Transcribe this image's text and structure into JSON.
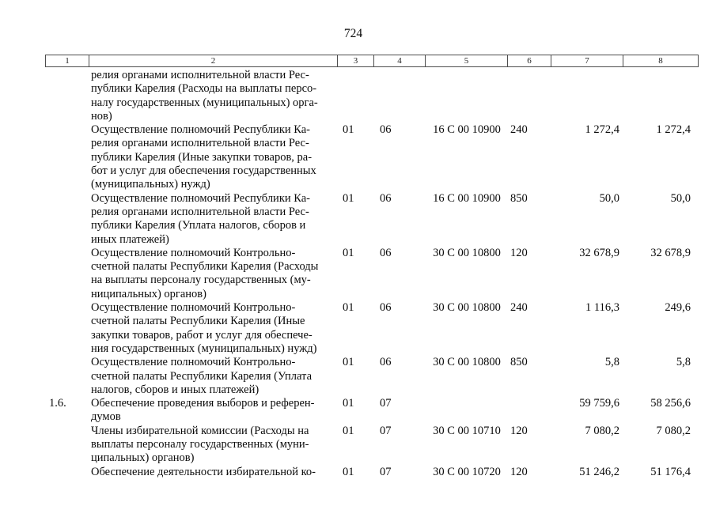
{
  "page": {
    "number": "724"
  },
  "table": {
    "header_columns": [
      "1",
      "2",
      "3",
      "4",
      "5",
      "6",
      "7",
      "8"
    ],
    "rows": [
      {
        "num": "",
        "name": "релия органами исполнительной власти Рес-\nпублики Карелия (Расходы на выплаты персо-\nналу государственных (муниципальных) орга-\nнов)",
        "rz": "",
        "pr": "",
        "csr": "",
        "vr": "",
        "sum1": "",
        "sum2": ""
      },
      {
        "num": "",
        "name": "Осуществление полномочий Республики Ка-\nрелия органами исполнительной власти Рес-\nпублики Карелия (Иные закупки товаров, ра-\nбот и услуг для обеспечения государственных\n(муниципальных) нужд)",
        "rz": "01",
        "pr": "06",
        "csr": "16 С 00 10900",
        "vr": "240",
        "sum1": "1 272,4",
        "sum2": "1 272,4"
      },
      {
        "num": "",
        "name": "Осуществление полномочий Республики Ка-\nрелия органами исполнительной власти Рес-\nпублики Карелия (Уплата налогов, сборов и\nиных платежей)",
        "rz": "01",
        "pr": "06",
        "csr": "16 С 00 10900",
        "vr": "850",
        "sum1": "50,0",
        "sum2": "50,0"
      },
      {
        "num": "",
        "name": "Осуществление полномочий Контрольно-\nсчетной палаты Республики Карелия (Расходы\nна выплаты персоналу государственных (му-\nниципальных) органов)",
        "rz": "01",
        "pr": "06",
        "csr": "30 С 00 10800",
        "vr": "120",
        "sum1": "32 678,9",
        "sum2": "32 678,9"
      },
      {
        "num": "",
        "name": "Осуществление полномочий Контрольно-\nсчетной палаты Республики Карелия (Иные\nзакупки товаров, работ и услуг для обеспече-\nния государственных (муниципальных) нужд)",
        "rz": "01",
        "pr": "06",
        "csr": "30 С 00 10800",
        "vr": "240",
        "sum1": "1 116,3",
        "sum2": "249,6"
      },
      {
        "num": "",
        "name": "Осуществление полномочий Контрольно-\nсчетной палаты Республики Карелия (Уплата\nналогов, сборов и иных платежей)",
        "rz": "01",
        "pr": "06",
        "csr": "30 С 00 10800",
        "vr": "850",
        "sum1": "5,8",
        "sum2": "5,8"
      },
      {
        "num": "1.6.",
        "name": "Обеспечение проведения выборов и референ-\nдумов",
        "rz": "01",
        "pr": "07",
        "csr": "",
        "vr": "",
        "sum1": "59 759,6",
        "sum2": "58 256,6"
      },
      {
        "num": "",
        "name": "Члены избирательной комиссии (Расходы на\nвыплаты персоналу государственных (муни-\nципальных) органов)",
        "rz": "01",
        "pr": "07",
        "csr": "30 С 00 10710",
        "vr": "120",
        "sum1": "7 080,2",
        "sum2": "7 080,2"
      },
      {
        "num": "",
        "name": "Обеспечение деятельности избирательной ко-",
        "rz": "01",
        "pr": "07",
        "csr": "30 С 00 10720",
        "vr": "120",
        "sum1": "51 246,2",
        "sum2": "51 176,4"
      }
    ]
  }
}
